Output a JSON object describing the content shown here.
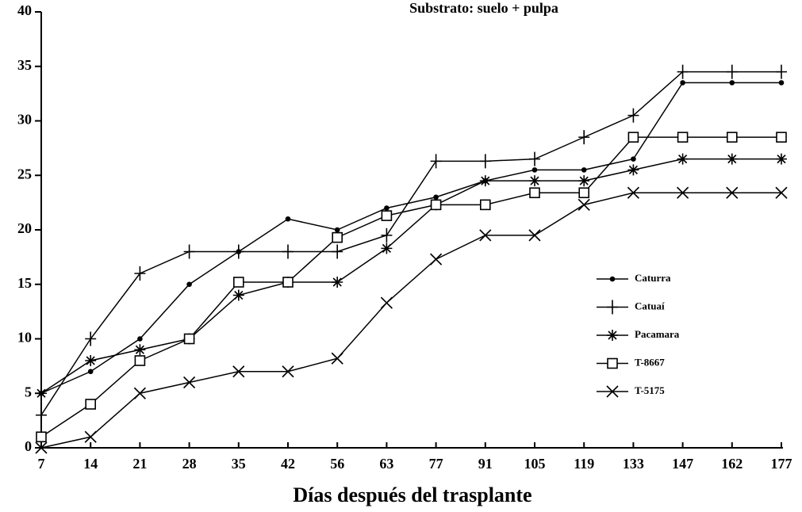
{
  "chart_data": {
    "type": "line",
    "title": "Substrato: suelo + pulpa",
    "x_label": "Días después del trasplante",
    "categories": [
      "7",
      "14",
      "21",
      "28",
      "35",
      "42",
      "56",
      "63",
      "77",
      "91",
      "105",
      "119",
      "133",
      "147",
      "162",
      "177"
    ],
    "series": [
      {
        "name": "Caturra",
        "color": "#000000",
        "marker": "dot",
        "values": [
          5,
          7,
          10,
          15,
          18,
          21,
          20,
          22,
          23,
          24.5,
          25.5,
          25.5,
          26.5,
          33.5,
          33.5,
          33.5
        ]
      },
      {
        "name": "Catuaí",
        "color": "#000000",
        "marker": "plus",
        "values": [
          3,
          10,
          16,
          18,
          18,
          18,
          18,
          19.5,
          26.3,
          26.3,
          26.5,
          28.5,
          30.5,
          34.5,
          34.5,
          34.5
        ]
      },
      {
        "name": "Pacamara",
        "color": "#000000",
        "marker": "star",
        "values": [
          5,
          8,
          9,
          10,
          14,
          15.2,
          15.2,
          18.3,
          22.3,
          24.5,
          24.5,
          24.5,
          25.5,
          26.5,
          26.5,
          26.5
        ]
      },
      {
        "name": "T-8667",
        "color": "#000000",
        "marker": "square",
        "values": [
          1,
          4,
          8,
          10,
          15.2,
          15.2,
          19.3,
          21.3,
          22.3,
          22.3,
          23.4,
          23.4,
          28.5,
          28.5,
          28.5,
          28.5
        ]
      },
      {
        "name": "T-5175",
        "color": "#000000",
        "marker": "x",
        "values": [
          0,
          1,
          5,
          6,
          7,
          7,
          8.2,
          13.3,
          17.3,
          19.5,
          19.5,
          22.3,
          23.4,
          23.4,
          23.4,
          23.4
        ]
      }
    ],
    "ylim": [
      0,
      40
    ],
    "yticks": [
      0,
      5,
      10,
      15,
      20,
      25,
      30,
      35,
      40
    ],
    "legend": "right"
  }
}
